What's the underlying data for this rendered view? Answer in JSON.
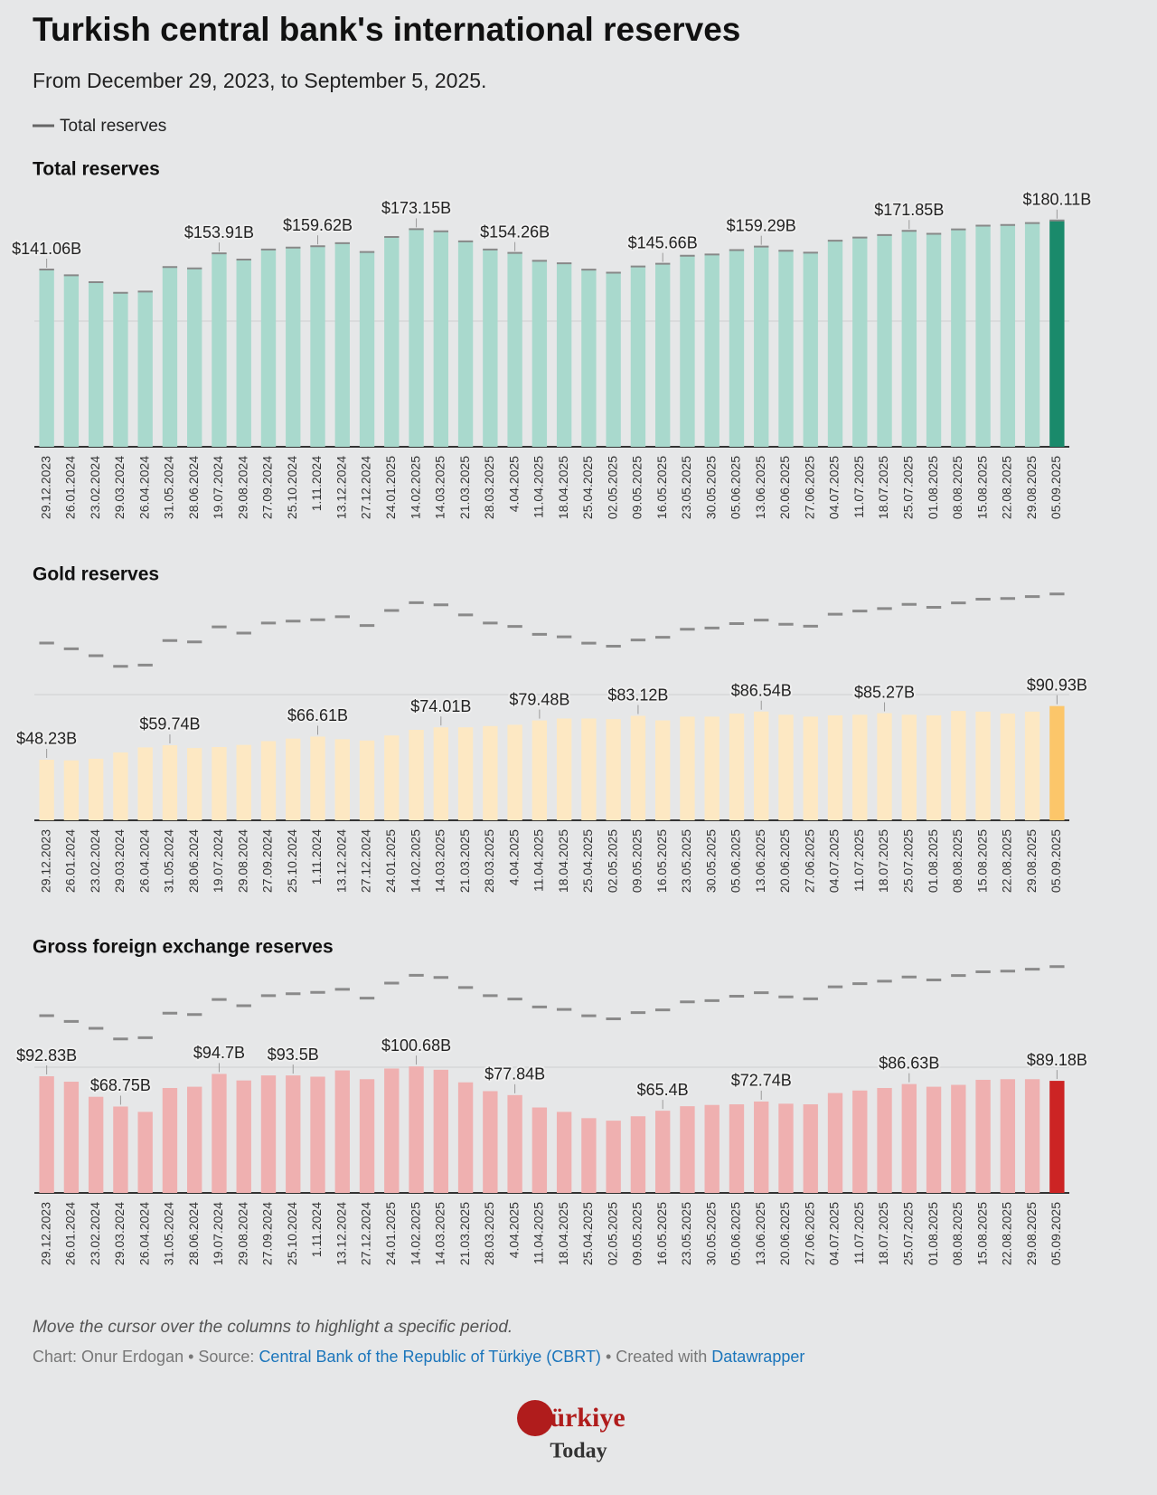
{
  "header": {
    "title": "Turkish central bank's international reserves",
    "subtitle": "From December 29, 2023, to September 5, 2025.",
    "legend": "Total reserves"
  },
  "chart_data": [
    {
      "type": "bar",
      "title": "Total reserves",
      "categories": [
        "29.12.2023",
        "26.01.2024",
        "23.02.2024",
        "29.03.2024",
        "26.04.2024",
        "31.05.2024",
        "28.06.2024",
        "19.07.2024",
        "29.08.2024",
        "27.09.2024",
        "25.10.2024",
        "1.11.2024",
        "13.12.2024",
        "27.12.2024",
        "24.01.2025",
        "14.02.2025",
        "14.03.2025",
        "21.03.2025",
        "28.03.2025",
        "4.04.2025",
        "11.04.2025",
        "18.04.2025",
        "25.04.2025",
        "02.05.2025",
        "09.05.2025",
        "16.05.2025",
        "23.05.2025",
        "30.05.2025",
        "05.06.2025",
        "13.06.2025",
        "20.06.2025",
        "27.06.2025",
        "04.07.2025",
        "11.07.2025",
        "18.07.2025",
        "25.07.2025",
        "01.08.2025",
        "08.08.2025",
        "15.08.2025",
        "22.08.2025",
        "29.08.2025",
        "05.09.2025"
      ],
      "values": [
        141.06,
        136.5,
        131,
        122.5,
        123.5,
        143,
        142,
        153.91,
        149,
        157,
        158.5,
        159.62,
        162,
        155,
        167,
        173.15,
        171.5,
        163.5,
        157,
        154.26,
        148,
        146,
        141,
        138.5,
        143.5,
        145.66,
        152,
        153,
        156.5,
        159.29,
        156,
        154.5,
        164,
        166.5,
        168.5,
        171.85,
        169.5,
        173,
        176,
        176.5,
        178,
        180.11
      ],
      "value_labels": [
        "$141.06B",
        null,
        null,
        null,
        null,
        null,
        null,
        "$153.91B",
        null,
        null,
        null,
        "$159.62B",
        null,
        null,
        null,
        "$173.15B",
        null,
        null,
        null,
        "$154.26B",
        null,
        null,
        null,
        null,
        null,
        "$145.66B",
        null,
        null,
        null,
        "$159.29B",
        null,
        null,
        null,
        null,
        null,
        "$171.85B",
        null,
        null,
        null,
        null,
        null,
        "$180.11B"
      ],
      "color": "#a9d9cd",
      "highlight_color": "#1a8a6b",
      "ylim": [
        0,
        190
      ],
      "yticks": [
        0,
        100
      ],
      "grid": true
    },
    {
      "type": "bar",
      "title": "Gold reserves",
      "categories": [
        "29.12.2023",
        "26.01.2024",
        "23.02.2024",
        "29.03.2024",
        "26.04.2024",
        "31.05.2024",
        "28.06.2024",
        "19.07.2024",
        "29.08.2024",
        "27.09.2024",
        "25.10.2024",
        "1.11.2024",
        "13.12.2024",
        "27.12.2024",
        "24.01.2025",
        "14.02.2025",
        "14.03.2025",
        "21.03.2025",
        "28.03.2025",
        "4.04.2025",
        "11.04.2025",
        "18.04.2025",
        "25.04.2025",
        "02.05.2025",
        "09.05.2025",
        "16.05.2025",
        "23.05.2025",
        "30.05.2025",
        "05.06.2025",
        "13.06.2025",
        "20.06.2025",
        "27.06.2025",
        "04.07.2025",
        "11.07.2025",
        "18.07.2025",
        "25.07.2025",
        "01.08.2025",
        "08.08.2025",
        "15.08.2025",
        "22.08.2025",
        "29.08.2025",
        "05.09.2025"
      ],
      "values": [
        48.23,
        47.7,
        49,
        54,
        58,
        59.74,
        57.5,
        58.3,
        60,
        63,
        65,
        66.61,
        64.5,
        63.5,
        67.5,
        72,
        74.01,
        74,
        75,
        76,
        79.48,
        81,
        81,
        80.5,
        83.12,
        79.5,
        82.5,
        82.5,
        85,
        86.54,
        84,
        82.5,
        83.5,
        84,
        85.27,
        84,
        83.5,
        87,
        86.5,
        85,
        86.5,
        90.93
      ],
      "value_labels": [
        "$48.23B",
        null,
        null,
        null,
        null,
        "$59.74B",
        null,
        null,
        null,
        null,
        null,
        "$66.61B",
        null,
        null,
        null,
        null,
        "$74.01B",
        null,
        null,
        null,
        "$79.48B",
        null,
        null,
        null,
        "$83.12B",
        null,
        null,
        null,
        null,
        "$86.54B",
        null,
        null,
        null,
        null,
        "$85.27B",
        null,
        null,
        null,
        null,
        null,
        null,
        "$90.93B"
      ],
      "color": "#fde8c3",
      "highlight_color": "#fcc66a",
      "ylim": [
        0,
        190
      ],
      "yticks": [
        0,
        100
      ],
      "grid": true
    },
    {
      "type": "bar",
      "title": "Gross foreign exchange reserves",
      "categories": [
        "29.12.2023",
        "26.01.2024",
        "23.02.2024",
        "29.03.2024",
        "26.04.2024",
        "31.05.2024",
        "28.06.2024",
        "19.07.2024",
        "29.08.2024",
        "27.09.2024",
        "25.10.2024",
        "1.11.2024",
        "13.12.2024",
        "27.12.2024",
        "24.01.2025",
        "14.02.2025",
        "14.03.2025",
        "21.03.2025",
        "28.03.2025",
        "4.04.2025",
        "11.04.2025",
        "18.04.2025",
        "25.04.2025",
        "02.05.2025",
        "09.05.2025",
        "16.05.2025",
        "23.05.2025",
        "30.05.2025",
        "05.06.2025",
        "13.06.2025",
        "20.06.2025",
        "27.06.2025",
        "04.07.2025",
        "11.07.2025",
        "18.07.2025",
        "25.07.2025",
        "01.08.2025",
        "08.08.2025",
        "15.08.2025",
        "22.08.2025",
        "29.08.2025",
        "05.09.2025"
      ],
      "values": [
        92.83,
        88.5,
        76.5,
        68.75,
        64.5,
        83.5,
        84.5,
        94.7,
        89.5,
        93.5,
        93.5,
        92.5,
        97.5,
        90.5,
        99,
        100.68,
        98,
        88,
        81,
        77.84,
        68,
        64.5,
        59.5,
        57.5,
        61,
        65.4,
        69,
        70,
        70.5,
        72.74,
        71,
        70.5,
        79.5,
        81.5,
        83.5,
        86.63,
        84.5,
        86,
        90,
        90.5,
        90.5,
        89.18
      ],
      "value_labels": [
        "$92.83B",
        null,
        null,
        "$68.75B",
        null,
        null,
        null,
        "$94.7B",
        null,
        null,
        "$93.5B",
        null,
        null,
        null,
        null,
        "$100.68B",
        null,
        null,
        null,
        "$77.84B",
        null,
        null,
        null,
        null,
        null,
        "$65.4B",
        null,
        null,
        null,
        "$72.74B",
        null,
        null,
        null,
        null,
        null,
        "$86.63B",
        null,
        null,
        null,
        null,
        null,
        "$89.18B"
      ],
      "color": "#efb0b0",
      "highlight_color": "#cc2424",
      "ylim": [
        0,
        190
      ],
      "yticks": [
        0,
        100
      ],
      "grid": true
    }
  ],
  "footer": {
    "note": "Move the cursor over the columns to highlight a specific period.",
    "credit": "Chart: Onur Erdogan • Source: ",
    "source_link": "Central Bank of the Republic of Türkiye (CBRT)",
    "created": " • Created with ",
    "tool_link": "Datawrapper"
  },
  "logo": {
    "name": "Türkiye",
    "tagline": "Today"
  }
}
